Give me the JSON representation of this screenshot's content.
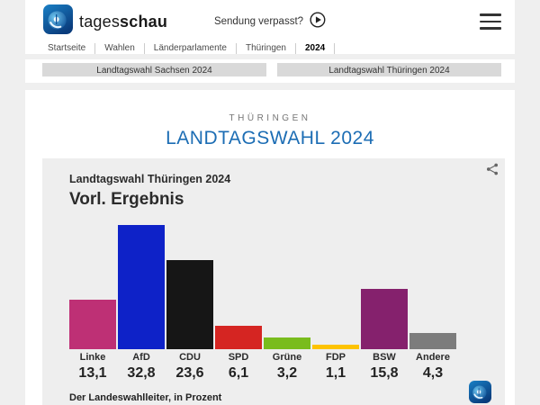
{
  "theme": {
    "accent_blue": "#1c6db4",
    "page_bg": "#efefef",
    "content_bg": "#ffffff",
    "card_bg": "#eeeeee",
    "button_bg": "#d9d9d9",
    "text_dark": "#2e2e2e",
    "kicker_gray": "#757575"
  },
  "header": {
    "brand_regular": "tages",
    "brand_bold": "schau",
    "sendung_verpasst_label": "Sendung verpasst?",
    "breadcrumb": [
      "Startseite",
      "Wahlen",
      "Länderparlamente",
      "Thüringen",
      "2024"
    ]
  },
  "tabs": [
    {
      "label": "Landtagswahl Sachsen 2024"
    },
    {
      "label": "Landtagswahl Thüringen 2024"
    }
  ],
  "page": {
    "kicker": "THÜRINGEN",
    "title": "LANDTAGSWAHL 2024"
  },
  "chart_data": {
    "type": "bar",
    "title": "Landtagswahl Thüringen 2024",
    "subtitle": "Vorl. Ergebnis",
    "categories": [
      "Linke",
      "AfD",
      "CDU",
      "SPD",
      "Grüne",
      "FDP",
      "BSW",
      "Andere"
    ],
    "values": [
      13.1,
      32.8,
      23.6,
      6.1,
      3.2,
      1.1,
      15.8,
      4.3
    ],
    "value_labels": [
      "13,1",
      "32,8",
      "23,6",
      "6,1",
      "3,2",
      "1,1",
      "15,8",
      "4,3"
    ],
    "colors": [
      "#be3075",
      "#0e22c8",
      "#161616",
      "#d52522",
      "#79bc1d",
      "#fdc300",
      "#85216d",
      "#7c7c7c"
    ],
    "ylim": [
      0,
      33.5
    ],
    "unit": "Prozent",
    "grid": false,
    "legend": "none",
    "source": "Der Landeswahlleiter, in Prozent"
  }
}
